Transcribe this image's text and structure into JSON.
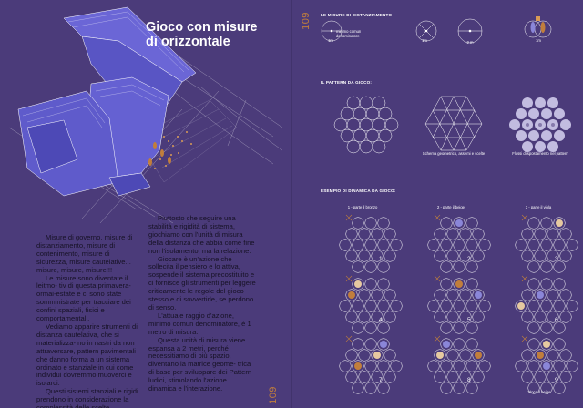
{
  "left_page": {
    "title_line1": "Gioco con misure",
    "title_line2": "di orizzontale",
    "page_number": "109",
    "col1": [
      "Misure di governo, misure di distanziamento, misure di contenimento, misure di sicurezza, misure cautelative... misure, misure, misure!!!",
      "Le misure sono diventate il leitmo- tiv di questa primavera-ormai-estate e ci sono state somministrate per tracciare dei confini spaziali, fisici e comportamentali.",
      "Vediamo apparire strumenti di distanza cautelativa, che si materializza- no in nastri da non attraversare, pattern pavimentali che danno forma a un sistema ordinato e stanziale in cui come individui dovremmo muoverci e isolarci.",
      "Questi sistemi stanziali e rigidi prendono in considerazione la complessità delle scelte individuali?"
    ],
    "col2": [
      "Piuttosto che seguire una stabilità e rigidità di sistema, giochiamo con l'unità di misura della distanza che abbia come fine non l'isolamento, ma la relazione.",
      "Giocare è un'azione che sollecita il pensiero e lo attiva, sospende il sistema precostituito e ci fornisce gli strumenti per leggere criticamente le regole del gioco stesso e di sovvertirle, se perdono di senso.",
      "L'attuale raggio d'azione, minimo comun denominatore, è 1 metro di misura.",
      "Questa unità di misura viene espansa a 2 metri, perché necessitiamo di più spazio, diventano la matrice geome- trica di base per sviluppare dei Pattern ludici, stimolando l'azione dinamica e l'interazione."
    ]
  },
  "right_page": {
    "page_number": "109",
    "section1": {
      "header": "LE MISURE DI DISTANZIAMENTO",
      "unit_label": "minimo comun denominatore",
      "dim_1m_a": "1m",
      "dim_1m_b": "1m",
      "dim_2m": "2 m",
      "dim_1m_c": "1m"
    },
    "section2": {
      "header": "IL PATTERN DA GIOCO:",
      "caption_geometry": "Schema geometrico, assemi e scelte",
      "caption_players": "Flussi di spostamento nel pattern"
    },
    "section3": {
      "header": "ESEMPIO DI DINAMICA DA GIOCO:",
      "columns": [
        "1 - parte il bronzo",
        "2 - parte il beige",
        "3 - parte il viola"
      ],
      "cells": [
        "1",
        "2",
        "3",
        "4",
        "5",
        "6",
        "7",
        "8",
        "9"
      ],
      "winner_label": "Vince il beige"
    }
  },
  "colors": {
    "background": "#4b3b7a",
    "accent_orange": "#c17e3c",
    "text_dark": "#171226",
    "line_white": "#ffffff",
    "building_blue": "#6b66d6"
  }
}
